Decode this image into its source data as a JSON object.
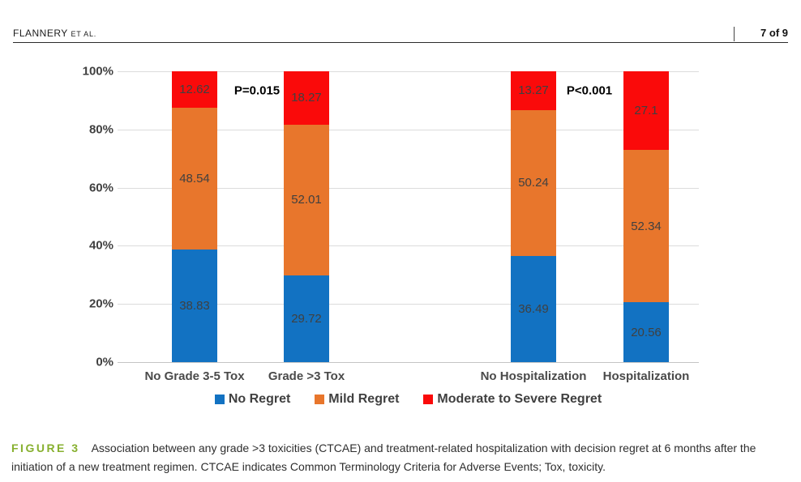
{
  "header": {
    "running_author": "FLANNERY",
    "running_author_suffix": "ET AL.",
    "page_indicator": "7 of 9"
  },
  "chart_data": {
    "type": "bar",
    "variant": "stacked-100-percent",
    "title": "",
    "categories": [
      "No Grade 3-5 Tox",
      "Grade >3 Tox",
      "No Hospitalization",
      "Hospitalization"
    ],
    "series": [
      {
        "name": "No Regret",
        "color": "#1272C2",
        "values": [
          38.83,
          29.72,
          36.49,
          20.56
        ]
      },
      {
        "name": "Mild Regret",
        "color": "#E8762C",
        "values": [
          48.54,
          52.01,
          50.24,
          52.34
        ]
      },
      {
        "name": "Moderate to Severe Regret",
        "color": "#FA0A0A",
        "values": [
          12.62,
          18.27,
          13.27,
          27.1
        ]
      }
    ],
    "data_labels": [
      [
        "38.83",
        "29.72",
        "36.49",
        "20.56"
      ],
      [
        "48.54",
        "52.01",
        "50.24",
        "52.34"
      ],
      [
        "12.62",
        "18.27",
        "13.27",
        "27.1"
      ]
    ],
    "y_ticks": [
      "0%",
      "20%",
      "40%",
      "60%",
      "80%",
      "100%"
    ],
    "ylim": [
      0,
      100
    ],
    "grid": true,
    "legend_position": "bottom",
    "annotations": [
      {
        "text": "P=0.015",
        "between": [
          "No Grade 3-5 Tox",
          "Grade >3 Tox"
        ]
      },
      {
        "text": "P<0.001",
        "between": [
          "No Hospitalization",
          "Hospitalization"
        ]
      }
    ]
  },
  "caption": {
    "label": "FIGURE 3",
    "label_color": "#87B02F",
    "text": "Association between any grade >3 toxicities (CTCAE) and treatment-related hospitalization with decision regret at 6 months after the initiation of a new treatment regimen. CTCAE indicates Common Terminology Criteria for Adverse Events; Tox, toxicity."
  },
  "colors": {
    "no_regret_blue": "#1272C2",
    "mild_regret_orange": "#E8762C",
    "moderate_severe_red": "#FA0A0A",
    "figure_label_green": "#87B02F",
    "gridline_gray": "#DCDCDC"
  }
}
